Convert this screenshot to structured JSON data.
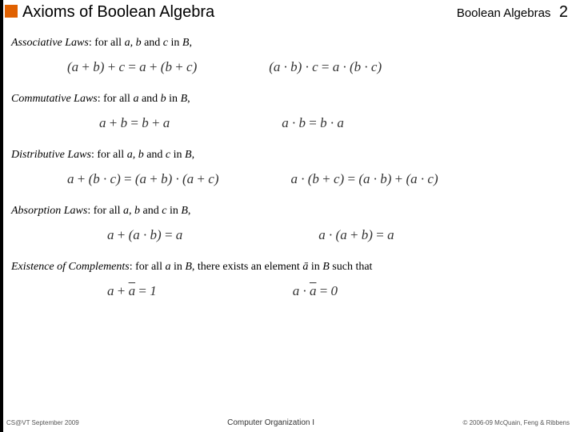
{
  "colors": {
    "left_bar": "#000000",
    "bullet": "#e06000",
    "background": "#ffffff",
    "text": "#000000",
    "footer_text": "#555555"
  },
  "header": {
    "title": "Axioms of Boolean Algebra",
    "section": "Boolean Algebras",
    "page": "2"
  },
  "laws": {
    "assoc": {
      "name": "Associative Laws",
      "cond_pre": ": for all ",
      "vars": "a, b",
      "cond_mid": " and ",
      "var2": "c",
      "cond_post": " in ",
      "set": "B",
      "comma": ",",
      "eq1": "(a + b) + c = a + (b + c)",
      "eq2": "(a · b) · c = a · (b · c)"
    },
    "comm": {
      "name": "Commutative Laws",
      "cond_pre": ": for all ",
      "vars": "a",
      "cond_mid": " and ",
      "var2": "b",
      "cond_post": " in ",
      "set": "B",
      "comma": ",",
      "eq1": "a + b = b + a",
      "eq2": "a · b = b · a"
    },
    "dist": {
      "name": "Distributive Laws",
      "cond_pre": ": for all ",
      "vars": "a, b",
      "cond_mid": " and ",
      "var2": "c",
      "cond_post": " in ",
      "set": "B",
      "comma": ",",
      "eq1": "a + (b · c) = (a + b) · (a + c)",
      "eq2": "a · (b + c) = (a · b) + (a · c)"
    },
    "absorp": {
      "name": "Absorption Laws",
      "cond_pre": ": for all ",
      "vars": "a, b",
      "cond_mid": " and ",
      "var2": "c",
      "cond_post": " in ",
      "set": "B",
      "comma": ",",
      "eq1": "a + (a · b) = a",
      "eq2": "a · (a + b) = a"
    },
    "compl": {
      "name": "Existence of Complements",
      "cond_pre": ": for all ",
      "vars": "a",
      "cond_post": " in ",
      "set": "B",
      "tail": ", there exists an element ",
      "abar": "ā",
      "tail2": " in ",
      "set2": "B",
      "tail3": " such that"
    }
  },
  "footer": {
    "left": "CS@VT September 2009",
    "center": "Computer Organization I",
    "right": "© 2006-09 McQuain, Feng & Ribbens"
  }
}
